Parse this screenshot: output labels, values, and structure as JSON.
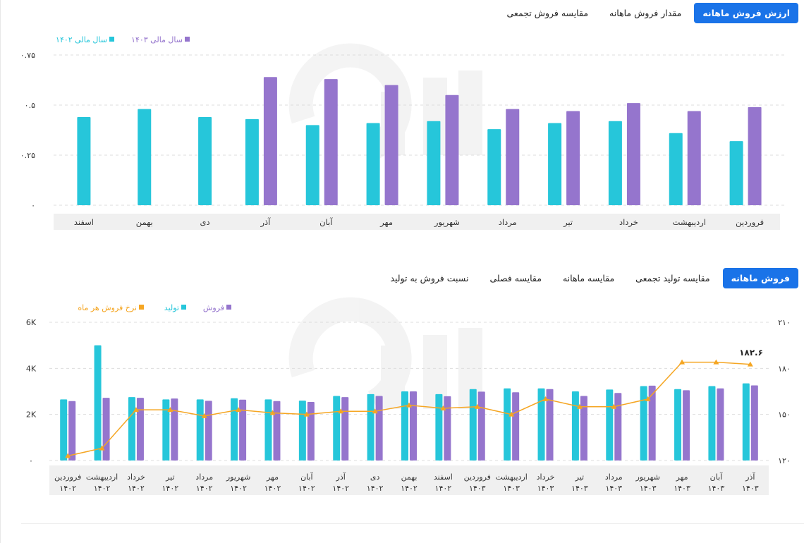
{
  "colors": {
    "cyan": "#26c6da",
    "purple": "#9575cd",
    "orange": "#f5a623",
    "accent": "#1a73e8"
  },
  "tabs_top": [
    {
      "label": "ارزش فروش ماهانه",
      "active": true
    },
    {
      "label": "مقدار فروش ماهانه",
      "active": false
    },
    {
      "label": "مقایسه فروش تجمعی",
      "active": false
    }
  ],
  "tabs_bottom": [
    {
      "label": "فروش ماهانه",
      "active": true
    },
    {
      "label": "مقایسه تولید تجمعی",
      "active": false
    },
    {
      "label": "مقایسه ماهانه",
      "active": false
    },
    {
      "label": "مقایسه فصلی",
      "active": false
    },
    {
      "label": "نسبت فروش به تولید",
      "active": false
    }
  ],
  "chart_data": [
    {
      "type": "bar",
      "legend": [
        "سال مالی ۱۴۰۲",
        "سال مالی ۱۴۰۳"
      ],
      "y_ticks": [
        "۰",
        "۰.۲۵",
        "۰.۵",
        "۰.۷۵"
      ],
      "ylim": [
        0,
        0.75
      ],
      "grid": true,
      "categories": [
        "فروردین",
        "اردیبهشت",
        "خرداد",
        "تیر",
        "مرداد",
        "شهریور",
        "مهر",
        "آبان",
        "آذر",
        "دی",
        "بهمن",
        "اسفند"
      ],
      "series": [
        {
          "name": "سال مالی ۱۴۰۲",
          "values": [
            0.32,
            0.36,
            0.42,
            0.41,
            0.38,
            0.42,
            0.41,
            0.4,
            0.43,
            0.44,
            0.48,
            0.44
          ]
        },
        {
          "name": "سال مالی ۱۴۰۳",
          "values": [
            0.49,
            0.47,
            0.51,
            0.47,
            0.48,
            0.55,
            0.6,
            0.63,
            0.64,
            null,
            null,
            null
          ]
        }
      ]
    },
    {
      "type": "bar+line",
      "legend": [
        "فروش",
        "تولید",
        "نرخ فروش هر ماه"
      ],
      "y_left_ticks": [
        "۰",
        "2K",
        "4K",
        "6K"
      ],
      "y_left_lim": [
        0,
        6000
      ],
      "y_right_ticks": [
        "۱۲۰",
        "۱۵۰",
        "۱۸۰",
        "۲۱۰"
      ],
      "y_right_lim": [
        120,
        210
      ],
      "grid": true,
      "categories": [
        [
          "فروردین",
          "۱۴۰۲"
        ],
        [
          "اردیبهشت",
          "۱۴۰۲"
        ],
        [
          "خرداد",
          "۱۴۰۲"
        ],
        [
          "تیر",
          "۱۴۰۲"
        ],
        [
          "مرداد",
          "۱۴۰۲"
        ],
        [
          "شهریور",
          "۱۴۰۲"
        ],
        [
          "مهر",
          "۱۴۰۲"
        ],
        [
          "آبان",
          "۱۴۰۲"
        ],
        [
          "آذر",
          "۱۴۰۲"
        ],
        [
          "دی",
          "۱۴۰۲"
        ],
        [
          "بهمن",
          "۱۴۰۲"
        ],
        [
          "اسفند",
          "۱۴۰۲"
        ],
        [
          "فروردین",
          "۱۴۰۳"
        ],
        [
          "اردیبهشت",
          "۱۴۰۳"
        ],
        [
          "خرداد",
          "۱۴۰۳"
        ],
        [
          "تیر",
          "۱۴۰۳"
        ],
        [
          "مرداد",
          "۱۴۰۳"
        ],
        [
          "شهریور",
          "۱۴۰۳"
        ],
        [
          "مهر",
          "۱۴۰۳"
        ],
        [
          "آبان",
          "۱۴۰۳"
        ],
        [
          "آذر",
          "۱۴۰۳"
        ]
      ],
      "series": [
        {
          "name": "تولید",
          "values": [
            2650,
            5000,
            2750,
            2650,
            2650,
            2700,
            2650,
            2600,
            2800,
            2880,
            3000,
            2880,
            3100,
            3130,
            3130,
            3000,
            3080,
            3230,
            3100,
            3230,
            3350
          ]
        },
        {
          "name": "فروش",
          "values": [
            2580,
            2720,
            2720,
            2690,
            2590,
            2640,
            2580,
            2540,
            2750,
            2800,
            3000,
            2790,
            2990,
            2960,
            3100,
            2800,
            2930,
            3250,
            3050,
            3130,
            3260
          ]
        },
        {
          "name": "نرخ فروش هر ماه",
          "values": [
            123,
            128,
            153,
            153,
            149,
            153,
            151,
            150,
            152,
            152,
            156,
            154,
            155,
            150,
            160,
            155,
            155,
            160,
            184,
            184,
            182.6
          ]
        }
      ],
      "annotation": "۱۸۲.۶"
    }
  ]
}
